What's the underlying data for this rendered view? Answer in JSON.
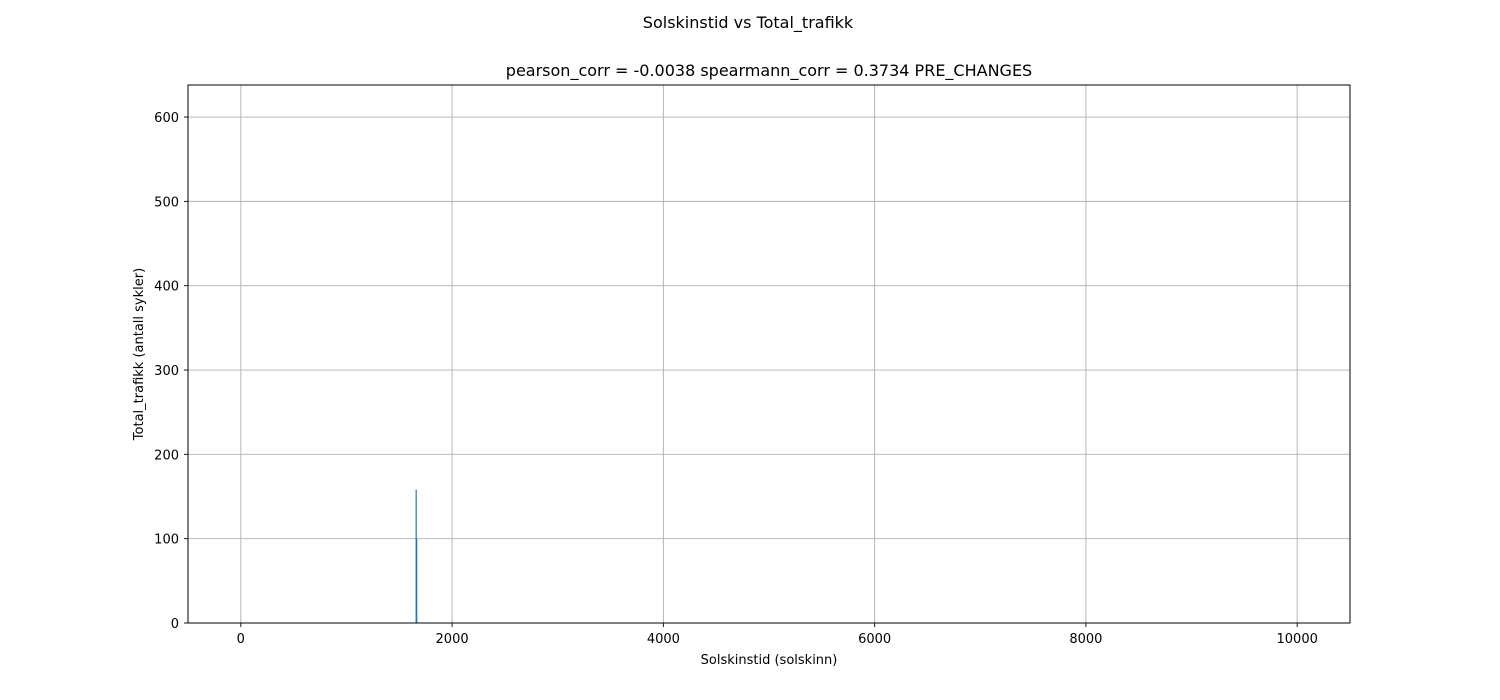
{
  "figure": {
    "suptitle": "Solskinstid vs Total_trafikk"
  },
  "chart_data": {
    "type": "bar",
    "title": "pearson_corr = -0.0038 spearmann_corr = 0.3734 PRE_CHANGES",
    "xlabel": "Solskinstid (solskinn)",
    "ylabel": "Total_trafikk (antall sykler)",
    "xlim": [
      -500,
      10500
    ],
    "ylim": [
      0,
      638
    ],
    "x_ticks": [
      0,
      2000,
      4000,
      6000,
      8000,
      10000
    ],
    "x_tick_labels": [
      "0",
      "2000",
      "4000",
      "6000",
      "8000",
      "10000"
    ],
    "y_ticks": [
      0,
      100,
      200,
      300,
      400,
      500,
      600
    ],
    "y_tick_labels": [
      "0",
      "100",
      "200",
      "300",
      "400",
      "500",
      "600"
    ],
    "grid": true,
    "series": [
      {
        "x": [
          1660,
          1665
        ],
        "values": [
          158,
          100
        ],
        "color": "#1f77b4"
      }
    ]
  }
}
